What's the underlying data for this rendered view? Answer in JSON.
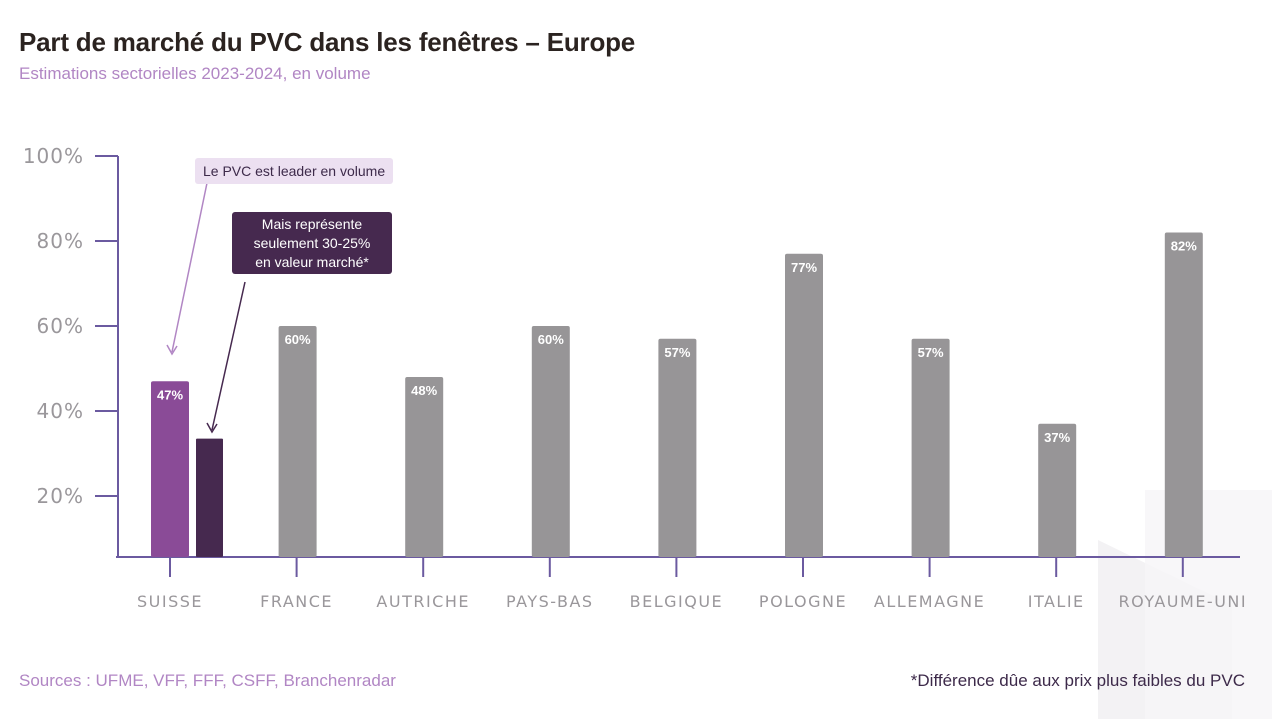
{
  "header": {
    "title": "Part de marché du PVC dans les fenêtres – Europe",
    "subtitle": "Estimations sectorielles 2023-2024, en volume"
  },
  "footer": {
    "sources": "Sources : UFME, VFF, FFF, CSFF, Branchenradar",
    "note": "*Différence dûe aux prix plus faibles du PVC"
  },
  "annotations": {
    "volume": "Le PVC est leader en volume",
    "value_lines": [
      "Mais représente",
      "seulement 30-25%",
      "en valeur marché*"
    ]
  },
  "colors": {
    "volume_bar": "#8a4b97",
    "value_bar": "#46294f",
    "other_bars": "#979597",
    "axis": "#6b5aa0"
  },
  "chart_data": {
    "type": "bar",
    "title": "Part de marché du PVC dans les fenêtres – Europe",
    "subtitle": "Estimations sectorielles 2023-2024, en volume",
    "categories": [
      "SUISSE",
      "FRANCE",
      "AUTRICHE",
      "PAYS-BAS",
      "BELGIQUE",
      "POLOGNE",
      "ALLEMAGNE",
      "ITALIE",
      "ROYAUME-UNI"
    ],
    "series": [
      {
        "values": [
          47,
          60,
          48,
          60,
          57,
          77,
          57,
          37,
          82
        ],
        "labels": [
          "47%",
          "60%",
          "48%",
          "60%",
          "57%",
          "77%",
          "57%",
          "37%",
          "82%"
        ]
      },
      {
        "values": [
          30,
          null,
          null,
          null,
          null,
          null,
          null,
          null,
          null
        ],
        "labels": [
          "",
          "",
          "",
          "",
          "",
          "",
          "",
          "",
          ""
        ]
      }
    ],
    "yticks": [
      20,
      40,
      60,
      80,
      100
    ],
    "ytick_labels": [
      "20%",
      "40%",
      "60%",
      "80%",
      "100%"
    ],
    "ylim": [
      5,
      100
    ],
    "grid": false,
    "legend": "none"
  }
}
